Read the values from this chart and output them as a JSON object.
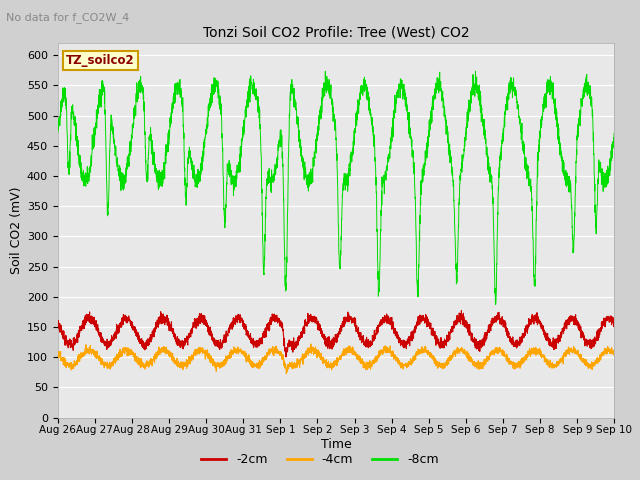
{
  "title": "Tonzi Soil CO2 Profile: Tree (West) CO2",
  "no_data_text": "No data for f_CO2W_4",
  "xlabel": "Time",
  "ylabel": "Soil CO2 (mV)",
  "ylim": [
    0,
    620
  ],
  "yticks": [
    0,
    50,
    100,
    150,
    200,
    250,
    300,
    350,
    400,
    450,
    500,
    550,
    600
  ],
  "fig_bg_color": "#d0d0d0",
  "plot_bg_color": "#e8e8e8",
  "line_colors": {
    "minus2cm": "#cc0000",
    "minus4cm": "#ffa500",
    "minus8cm": "#00dd00"
  },
  "legend_labels": [
    "-2cm",
    "-4cm",
    "-8cm"
  ],
  "box_label": "TZ_soilco2",
  "box_facecolor": "#ffffcc",
  "box_edgecolor": "#cc9900",
  "x_tick_labels": [
    "Aug 26",
    "Aug 27",
    "Aug 28",
    "Aug 29",
    "Aug 30",
    "Aug 31",
    "Sep 1",
    "Sep 2",
    "Sep 3",
    "Sep 4",
    "Sep 5",
    "Sep 6",
    "Sep 7",
    "Sep 8",
    "Sep 9",
    "Sep 10"
  ],
  "n_points": 3360,
  "duration_days": 15
}
